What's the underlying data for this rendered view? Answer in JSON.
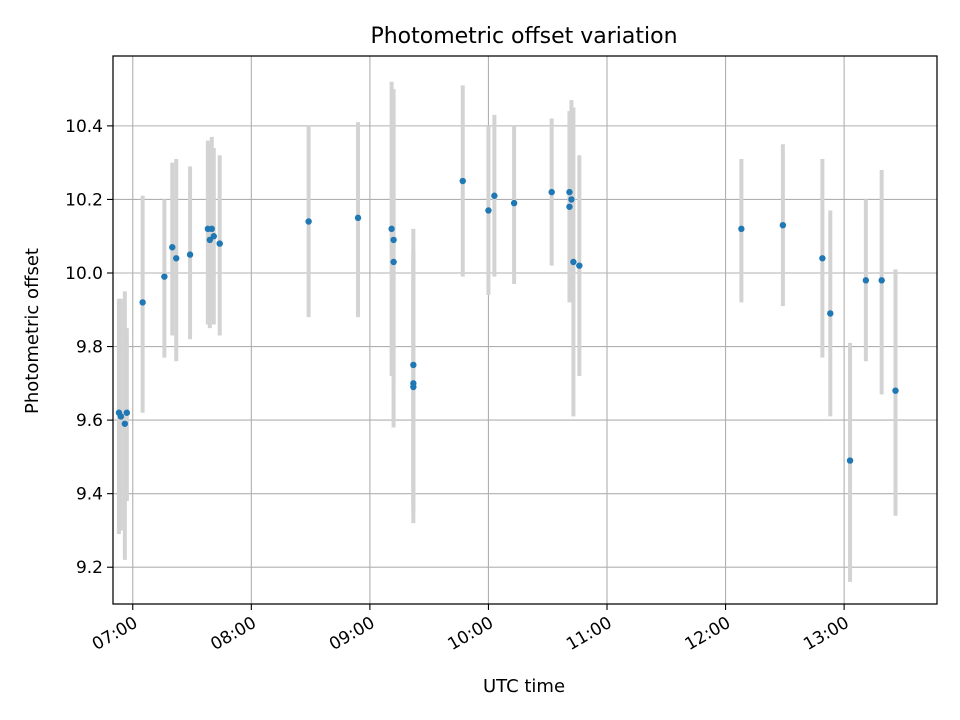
{
  "chart_data": {
    "type": "scatter",
    "title": "Photometric offset variation",
    "xlabel": "UTC time",
    "ylabel": "Photometric offset",
    "x_unit": "UTC time of day (HH:MM)",
    "xlim": [
      "06:50",
      "13:47"
    ],
    "ylim": [
      9.1,
      10.59
    ],
    "x_ticks": [
      "07:00",
      "08:00",
      "09:00",
      "10:00",
      "11:00",
      "12:00",
      "13:00"
    ],
    "y_ticks": [
      "9.2",
      "9.4",
      "9.6",
      "9.8",
      "10.0",
      "10.2",
      "10.4"
    ],
    "grid": true,
    "colors": {
      "point": "#1f77b4",
      "errorbar": "#d3d3d3",
      "grid": "#b0b0b0"
    },
    "points": [
      {
        "x": "06:53",
        "y": 9.62,
        "err_low": 9.29,
        "err_high": 9.93
      },
      {
        "x": "06:54",
        "y": 9.61,
        "err_low": 9.3,
        "err_high": 9.93
      },
      {
        "x": "06:56",
        "y": 9.59,
        "err_low": 9.22,
        "err_high": 9.95
      },
      {
        "x": "06:57",
        "y": 9.62,
        "err_low": 9.38,
        "err_high": 9.85
      },
      {
        "x": "07:05",
        "y": 9.92,
        "err_low": 9.62,
        "err_high": 10.21
      },
      {
        "x": "07:16",
        "y": 9.99,
        "err_low": 9.77,
        "err_high": 10.2
      },
      {
        "x": "07:20",
        "y": 10.07,
        "err_low": 9.83,
        "err_high": 10.3
      },
      {
        "x": "07:22",
        "y": 10.04,
        "err_low": 9.76,
        "err_high": 10.31
      },
      {
        "x": "07:29",
        "y": 10.05,
        "err_low": 9.82,
        "err_high": 10.29
      },
      {
        "x": "07:38",
        "y": 10.12,
        "err_low": 9.86,
        "err_high": 10.36
      },
      {
        "x": "07:39",
        "y": 10.09,
        "err_low": 9.85,
        "err_high": 10.35
      },
      {
        "x": "07:40",
        "y": 10.12,
        "err_low": 9.87,
        "err_high": 10.37
      },
      {
        "x": "07:41",
        "y": 10.1,
        "err_low": 9.86,
        "err_high": 10.34
      },
      {
        "x": "07:44",
        "y": 10.08,
        "err_low": 9.83,
        "err_high": 10.32
      },
      {
        "x": "08:29",
        "y": 10.14,
        "err_low": 9.88,
        "err_high": 10.4
      },
      {
        "x": "08:54",
        "y": 10.15,
        "err_low": 9.88,
        "err_high": 10.41
      },
      {
        "x": "09:11",
        "y": 10.12,
        "err_low": 9.72,
        "err_high": 10.52
      },
      {
        "x": "09:12",
        "y": 10.09,
        "err_low": 9.69,
        "err_high": 10.5
      },
      {
        "x": "09:12",
        "y": 10.03,
        "err_low": 9.58,
        "err_high": 10.48
      },
      {
        "x": "09:22",
        "y": 9.75,
        "err_low": 9.36,
        "err_high": 10.12
      },
      {
        "x": "09:22",
        "y": 9.7,
        "err_low": 9.35,
        "err_high": 10.06
      },
      {
        "x": "09:22",
        "y": 9.69,
        "err_low": 9.32,
        "err_high": 10.04
      },
      {
        "x": "09:47",
        "y": 10.25,
        "err_low": 9.99,
        "err_high": 10.51
      },
      {
        "x": "10:00",
        "y": 10.17,
        "err_low": 9.94,
        "err_high": 10.4
      },
      {
        "x": "10:03",
        "y": 10.21,
        "err_low": 9.99,
        "err_high": 10.43
      },
      {
        "x": "10:13",
        "y": 10.19,
        "err_low": 9.97,
        "err_high": 10.4
      },
      {
        "x": "10:32",
        "y": 10.22,
        "err_low": 10.02,
        "err_high": 10.42
      },
      {
        "x": "10:41",
        "y": 10.22,
        "err_low": 9.99,
        "err_high": 10.43
      },
      {
        "x": "10:41",
        "y": 10.18,
        "err_low": 9.92,
        "err_high": 10.44
      },
      {
        "x": "10:42",
        "y": 10.2,
        "err_low": 9.95,
        "err_high": 10.47
      },
      {
        "x": "10:43",
        "y": 10.03,
        "err_low": 9.61,
        "err_high": 10.45
      },
      {
        "x": "10:46",
        "y": 10.02,
        "err_low": 9.72,
        "err_high": 10.32
      },
      {
        "x": "12:08",
        "y": 10.12,
        "err_low": 9.92,
        "err_high": 10.31
      },
      {
        "x": "12:29",
        "y": 10.13,
        "err_low": 9.91,
        "err_high": 10.35
      },
      {
        "x": "12:49",
        "y": 10.04,
        "err_low": 9.77,
        "err_high": 10.31
      },
      {
        "x": "12:53",
        "y": 9.89,
        "err_low": 9.61,
        "err_high": 10.17
      },
      {
        "x": "13:03",
        "y": 9.49,
        "err_low": 9.16,
        "err_high": 9.81
      },
      {
        "x": "13:11",
        "y": 9.98,
        "err_low": 9.76,
        "err_high": 10.2
      },
      {
        "x": "13:19",
        "y": 9.98,
        "err_low": 9.67,
        "err_high": 10.28
      },
      {
        "x": "13:26",
        "y": 9.68,
        "err_low": 9.34,
        "err_high": 10.01
      }
    ]
  }
}
